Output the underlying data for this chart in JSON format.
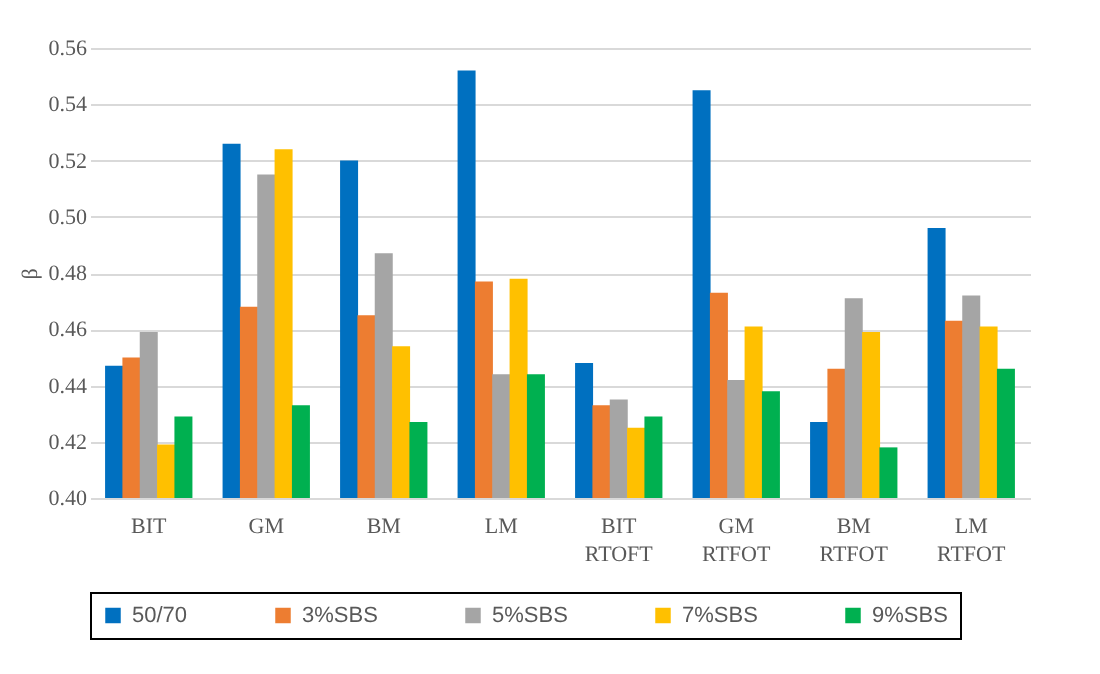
{
  "chart_data": {
    "type": "bar",
    "ylabel": "β",
    "categories": [
      "BIT",
      "GM",
      "BM",
      "LM",
      "BIT RTOFT",
      "GM RTFOT",
      "BM RTFOT",
      "LM RTFOT"
    ],
    "series": [
      {
        "name": "50/70",
        "color": "#0070c0",
        "values": [
          0.447,
          0.526,
          0.52,
          0.552,
          0.448,
          0.545,
          0.427,
          0.496
        ]
      },
      {
        "name": "3%SBS",
        "color": "#ed7d31",
        "values": [
          0.45,
          0.468,
          0.465,
          0.477,
          0.433,
          0.473,
          0.446,
          0.463
        ]
      },
      {
        "name": "5%SBS",
        "color": "#a5a5a5",
        "values": [
          0.459,
          0.515,
          0.487,
          0.444,
          0.435,
          0.442,
          0.471,
          0.472
        ]
      },
      {
        "name": "7%SBS",
        "color": "#ffc000",
        "values": [
          0.419,
          0.524,
          0.454,
          0.478,
          0.425,
          0.461,
          0.459,
          0.461
        ]
      },
      {
        "name": "9%SBS",
        "color": "#00b050",
        "values": [
          0.429,
          0.433,
          0.427,
          0.444,
          0.429,
          0.438,
          0.418,
          0.446
        ]
      }
    ],
    "ylim": [
      0.4,
      0.56
    ],
    "yticks": [
      {
        "value": 0.4,
        "label": "0.40"
      },
      0.42,
      0.44,
      0.46,
      0.48,
      {
        "value": 0.5,
        "label": "0.50"
      },
      0.52,
      0.54,
      0.56
    ],
    "grid": "y",
    "legend": "bottom"
  }
}
